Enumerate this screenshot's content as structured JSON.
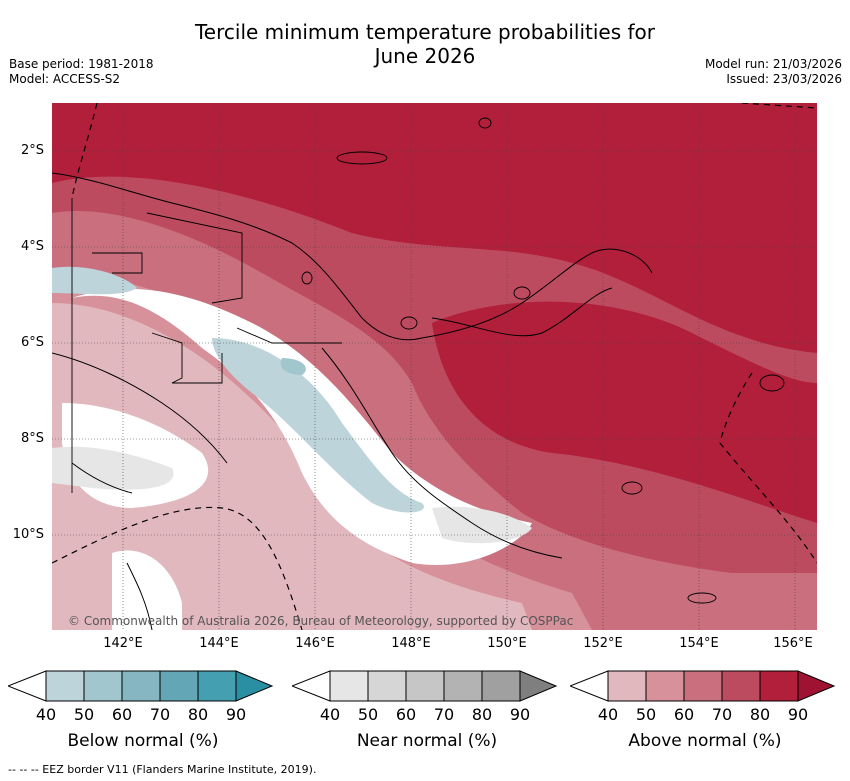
{
  "header": {
    "title_line1": "Tercile minimum temperature probabilities for",
    "title_line2": "June 2026",
    "base_period": "Base period: 1981-2018",
    "model": "Model: ACCESS-S2",
    "model_run": "Model run: 21/03/2026",
    "issued": "Issued: 23/03/2026"
  },
  "map": {
    "lat_labels": [
      "2°S",
      "4°S",
      "6°S",
      "8°S",
      "10°S"
    ],
    "lon_labels": [
      "142°E",
      "144°E",
      "146°E",
      "148°E",
      "150°E",
      "152°E",
      "154°E",
      "156°E"
    ],
    "copyright": "© Commonwealth of Australia 2026, Bureau of Meteorology, supported by COSPPac"
  },
  "legends": [
    {
      "title": "Below normal (%)",
      "ticks": [
        "40",
        "50",
        "60",
        "70",
        "80",
        "90"
      ],
      "colors": [
        "#ffffff",
        "#bdd4da",
        "#a2c6ce",
        "#85b6c2",
        "#63a6b5",
        "#44a0b0",
        "#2a8fa3"
      ]
    },
    {
      "title": "Near normal (%)",
      "ticks": [
        "40",
        "50",
        "60",
        "70",
        "80",
        "90"
      ],
      "colors": [
        "#ffffff",
        "#e6e6e6",
        "#d6d6d6",
        "#c6c6c6",
        "#b3b3b3",
        "#a0a0a0",
        "#7f7f7f"
      ]
    },
    {
      "title": "Above normal (%)",
      "ticks": [
        "40",
        "50",
        "60",
        "70",
        "80",
        "90"
      ],
      "colors": [
        "#ffffff",
        "#e2b8bf",
        "#d6919b",
        "#c96f7e",
        "#bd4b60",
        "#b21f3b",
        "#a01232"
      ]
    }
  ],
  "footnote": "-- -- -- EEZ border V11 (Flanders Marine Institute, 2019)."
}
